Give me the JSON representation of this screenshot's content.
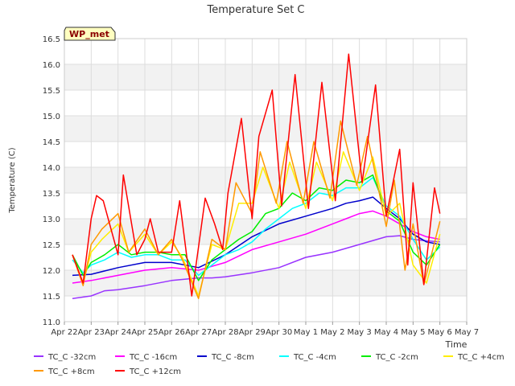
{
  "chart_data": {
    "type": "line",
    "title": "Temperature Set C",
    "xlabel": "Time",
    "ylabel": "Temperature (C)",
    "badge": "WP_met",
    "ylim": [
      11.0,
      16.5
    ],
    "yticks": [
      11.0,
      11.5,
      12.0,
      12.5,
      13.0,
      13.5,
      14.0,
      14.5,
      15.0,
      15.5,
      16.0,
      16.5
    ],
    "xlim": [
      0,
      15
    ],
    "xticks": [
      {
        "pos": 0,
        "label": "Apr 22"
      },
      {
        "pos": 1,
        "label": "Apr 23"
      },
      {
        "pos": 2,
        "label": "Apr 24"
      },
      {
        "pos": 3,
        "label": "Apr 25"
      },
      {
        "pos": 4,
        "label": "Apr 26"
      },
      {
        "pos": 5,
        "label": "Apr 27"
      },
      {
        "pos": 6,
        "label": "Apr 28"
      },
      {
        "pos": 7,
        "label": "Apr 29"
      },
      {
        "pos": 8,
        "label": "Apr 30"
      },
      {
        "pos": 9,
        "label": "May 1"
      },
      {
        "pos": 10,
        "label": "May 2"
      },
      {
        "pos": 11,
        "label": "May 3"
      },
      {
        "pos": 12,
        "label": "May 4"
      },
      {
        "pos": 13,
        "label": "May 5"
      },
      {
        "pos": 14,
        "label": "May 6"
      },
      {
        "pos": 15,
        "label": "May 7"
      }
    ],
    "grid": true,
    "legend_position": "bottom",
    "x_unit": "days since Apr 22",
    "series": [
      {
        "name": "TC_C -32cm",
        "color": "#9933ff",
        "x": [
          0.3,
          1.0,
          1.5,
          2.0,
          3.0,
          4.0,
          5.0,
          5.5,
          6.0,
          7.0,
          8.0,
          9.0,
          10.0,
          11.0,
          12.0,
          12.5,
          13.0,
          13.5,
          14.0
        ],
        "y": [
          11.45,
          11.5,
          11.6,
          11.62,
          11.7,
          11.8,
          11.85,
          11.85,
          11.87,
          11.95,
          12.05,
          12.25,
          12.35,
          12.5,
          12.65,
          12.67,
          12.6,
          12.57,
          12.55
        ]
      },
      {
        "name": "TC_C -16cm",
        "color": "#ff00ff",
        "x": [
          0.3,
          1.0,
          2.0,
          3.0,
          4.0,
          5.0,
          6.0,
          7.0,
          8.0,
          9.0,
          10.0,
          10.5,
          11.0,
          11.5,
          12.0,
          13.0,
          13.5,
          14.0
        ],
        "y": [
          11.75,
          11.8,
          11.9,
          12.0,
          12.05,
          12.0,
          12.15,
          12.4,
          12.55,
          12.7,
          12.9,
          13.0,
          13.1,
          13.15,
          13.05,
          12.75,
          12.65,
          12.6
        ]
      },
      {
        "name": "TC_C -8cm",
        "color": "#0000cc",
        "x": [
          0.3,
          1.0,
          2.0,
          3.0,
          4.0,
          5.0,
          6.0,
          7.0,
          8.0,
          9.0,
          10.0,
          10.5,
          11.0,
          11.5,
          12.0,
          12.5,
          13.0,
          13.5,
          14.0
        ],
        "y": [
          11.9,
          11.92,
          12.05,
          12.15,
          12.15,
          12.05,
          12.3,
          12.65,
          12.9,
          13.05,
          13.2,
          13.3,
          13.35,
          13.42,
          13.2,
          13.0,
          12.7,
          12.55,
          12.5
        ]
      },
      {
        "name": "TC_C -4cm",
        "color": "#00ffff",
        "x": [
          0.3,
          0.7,
          1.0,
          1.5,
          2.0,
          2.5,
          3.0,
          3.5,
          4.0,
          4.5,
          5.0,
          5.5,
          6.0,
          6.5,
          7.0,
          7.5,
          8.0,
          8.5,
          9.0,
          9.5,
          10.0,
          10.5,
          11.0,
          11.5,
          12.0,
          12.5,
          13.0,
          13.5,
          14.0
        ],
        "y": [
          12.2,
          11.95,
          12.1,
          12.2,
          12.35,
          12.25,
          12.3,
          12.3,
          12.2,
          12.2,
          11.9,
          12.1,
          12.3,
          12.4,
          12.55,
          12.8,
          13.0,
          13.2,
          13.3,
          13.5,
          13.45,
          13.6,
          13.6,
          13.8,
          13.25,
          13.05,
          12.6,
          12.2,
          12.45
        ]
      },
      {
        "name": "TC_C -2cm",
        "color": "#00ee00",
        "x": [
          0.3,
          0.7,
          1.0,
          1.5,
          2.0,
          2.5,
          3.0,
          3.5,
          4.0,
          4.5,
          5.0,
          5.5,
          6.0,
          6.5,
          7.0,
          7.5,
          8.0,
          8.5,
          9.0,
          9.5,
          10.0,
          10.5,
          11.0,
          11.5,
          12.0,
          12.5,
          13.0,
          13.5,
          14.0
        ],
        "y": [
          12.3,
          11.9,
          12.15,
          12.3,
          12.5,
          12.3,
          12.35,
          12.35,
          12.3,
          12.3,
          11.8,
          12.2,
          12.4,
          12.6,
          12.75,
          13.1,
          13.2,
          13.5,
          13.35,
          13.6,
          13.55,
          13.75,
          13.7,
          13.85,
          13.15,
          12.95,
          12.35,
          12.1,
          12.5
        ]
      },
      {
        "name": "TC_C +4cm",
        "color": "#ffee00",
        "x": [
          0.3,
          0.7,
          1.0,
          1.4,
          2.0,
          2.4,
          3.0,
          3.5,
          4.0,
          4.4,
          5.0,
          5.5,
          6.0,
          6.5,
          7.0,
          7.4,
          8.0,
          8.4,
          9.0,
          9.4,
          10.0,
          10.4,
          11.0,
          11.5,
          12.0,
          12.5,
          13.0,
          13.5,
          14.0
        ],
        "y": [
          12.3,
          11.75,
          12.35,
          12.6,
          12.9,
          12.35,
          12.7,
          12.3,
          12.55,
          12.25,
          11.5,
          12.5,
          12.4,
          13.3,
          13.3,
          14.0,
          13.2,
          14.1,
          13.2,
          14.1,
          13.35,
          14.3,
          13.55,
          14.2,
          13.05,
          13.3,
          12.1,
          11.75,
          12.7
        ]
      },
      {
        "name": "TC_C +8cm",
        "color": "#ff9900",
        "x": [
          0.3,
          0.7,
          1.0,
          1.4,
          2.0,
          2.4,
          3.0,
          3.5,
          4.0,
          4.4,
          5.0,
          5.5,
          6.0,
          6.4,
          7.0,
          7.3,
          7.9,
          8.3,
          8.9,
          9.3,
          9.9,
          10.3,
          10.9,
          11.3,
          12.0,
          12.3,
          12.7,
          13.0,
          13.4,
          14.0
        ],
        "y": [
          12.3,
          11.7,
          12.5,
          12.8,
          13.1,
          12.35,
          12.8,
          12.3,
          12.6,
          12.2,
          11.45,
          12.6,
          12.4,
          13.7,
          13.1,
          14.3,
          13.3,
          14.5,
          13.3,
          14.5,
          13.4,
          14.9,
          13.65,
          14.6,
          12.85,
          13.75,
          12.0,
          12.9,
          11.72,
          12.95
        ]
      },
      {
        "name": "TC_C +12cm",
        "color": "#ff0000",
        "x": [
          0.3,
          0.7,
          1.0,
          1.2,
          1.45,
          2.0,
          2.2,
          2.7,
          3.0,
          3.2,
          3.5,
          4.0,
          4.3,
          4.75,
          5.0,
          5.25,
          5.6,
          5.9,
          6.1,
          6.6,
          7.0,
          7.25,
          7.75,
          8.1,
          8.6,
          9.1,
          9.6,
          10.1,
          10.6,
          11.1,
          11.6,
          12.0,
          12.5,
          12.8,
          13.0,
          13.4,
          13.8,
          14.0
        ],
        "y": [
          12.3,
          11.75,
          13.0,
          13.45,
          13.35,
          12.3,
          13.85,
          12.3,
          12.6,
          13.0,
          12.35,
          12.35,
          13.35,
          11.5,
          12.45,
          13.4,
          12.9,
          12.4,
          13.5,
          14.95,
          13.0,
          14.6,
          15.5,
          13.25,
          15.8,
          13.2,
          15.65,
          13.35,
          16.2,
          13.7,
          15.6,
          13.05,
          14.35,
          12.1,
          13.7,
          11.72,
          13.6,
          13.1
        ]
      }
    ]
  }
}
